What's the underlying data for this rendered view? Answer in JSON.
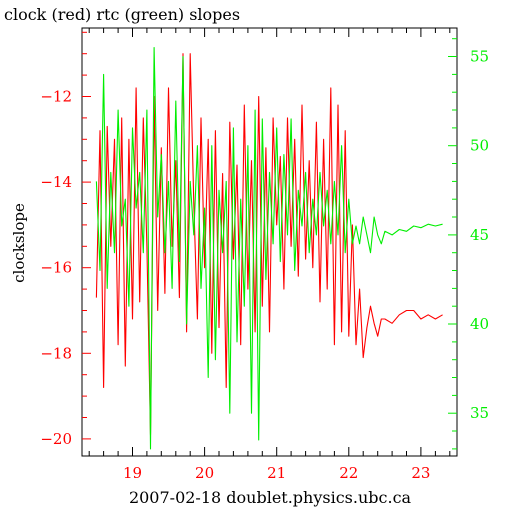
{
  "chart_data": {
    "type": "line",
    "title": "clock (red) rtc (green) slopes",
    "xlabel": "2007-02-18 doublet.physics.ubc.ca",
    "ylabel": "clockslope",
    "xlim": [
      18.3,
      23.5
    ],
    "ylim_left": [
      -20.4,
      -10.4
    ],
    "ylim_right": [
      32.6,
      56.6
    ],
    "x_ticks": [
      19,
      20,
      21,
      22,
      23
    ],
    "y_left_ticks": [
      -20,
      -18,
      -16,
      -14,
      -12
    ],
    "y_right_ticks": [
      35,
      40,
      45,
      50,
      55
    ],
    "grid": false,
    "colors": {
      "clock": "#ff0000",
      "rtc": "#00ee00",
      "axes": "#000000"
    },
    "series": [
      {
        "label": "clock (red)",
        "axis": "left",
        "color": "#ff0000",
        "x": [
          18.5,
          18.55,
          18.6,
          18.65,
          18.7,
          18.75,
          18.8,
          18.85,
          18.9,
          18.95,
          19.0,
          19.05,
          19.1,
          19.15,
          19.2,
          19.25,
          19.3,
          19.35,
          19.4,
          19.45,
          19.5,
          19.55,
          19.6,
          19.65,
          19.7,
          19.75,
          19.8,
          19.85,
          19.9,
          19.95,
          20.0,
          20.05,
          20.1,
          20.15,
          20.2,
          20.25,
          20.3,
          20.35,
          20.4,
          20.45,
          20.5,
          20.55,
          20.6,
          20.65,
          20.7,
          20.75,
          20.8,
          20.85,
          20.9,
          20.95,
          21.0,
          21.05,
          21.1,
          21.15,
          21.2,
          21.25,
          21.3,
          21.35,
          21.4,
          21.45,
          21.5,
          21.55,
          21.6,
          21.65,
          21.7,
          21.75,
          21.8,
          21.85,
          21.9,
          21.95,
          22.0,
          22.05,
          22.1,
          22.15,
          22.2,
          22.25,
          22.3,
          22.35,
          22.4,
          22.45,
          22.5,
          22.6,
          22.7,
          22.8,
          22.9,
          23.0,
          23.1,
          23.2,
          23.3
        ],
        "y": [
          -16.7,
          -12.8,
          -18.8,
          -12.7,
          -15.5,
          -13.0,
          -17.8,
          -12.5,
          -18.3,
          -13.0,
          -17.2,
          -11.8,
          -16.8,
          -12.5,
          -15.5,
          -19.9,
          -12.0,
          -17.0,
          -13.2,
          -16.6,
          -11.8,
          -15.5,
          -13.5,
          -16.7,
          -11.0,
          -17.5,
          -11.0,
          -14.5,
          -17.2,
          -12.5,
          -16.0,
          -13.0,
          -18.0,
          -12.8,
          -17.4,
          -13.8,
          -18.8,
          -12.6,
          -15.8,
          -13.6,
          -17.8,
          -12.2,
          -16.5,
          -13.5,
          -17.5,
          -12.0,
          -16.9,
          -13.2,
          -17.5,
          -12.5,
          -15.0,
          -13.4,
          -16.5,
          -12.5,
          -15.5,
          -13.0,
          -16.2,
          -12.2,
          -15.8,
          -13.5,
          -16.0,
          -12.6,
          -16.8,
          -13.0,
          -16.5,
          -11.8,
          -17.8,
          -12.2,
          -17.5,
          -12.8,
          -17.6,
          -15.0,
          -17.8,
          -16.5,
          -18.1,
          -17.4,
          -16.9,
          -17.3,
          -17.6,
          -17.2,
          -17.2,
          -17.3,
          -17.1,
          -17.0,
          -17.0,
          -17.2,
          -17.1,
          -17.2,
          -17.1
        ]
      },
      {
        "label": "rtc (green)",
        "axis": "right",
        "color": "#00ee00",
        "x": [
          18.5,
          18.55,
          18.6,
          18.65,
          18.7,
          18.75,
          18.8,
          18.85,
          18.9,
          18.95,
          19.0,
          19.05,
          19.1,
          19.15,
          19.2,
          19.25,
          19.3,
          19.35,
          19.4,
          19.45,
          19.5,
          19.55,
          19.6,
          19.65,
          19.7,
          19.75,
          19.8,
          19.85,
          19.9,
          19.95,
          20.0,
          20.05,
          20.1,
          20.15,
          20.2,
          20.25,
          20.3,
          20.35,
          20.4,
          20.45,
          20.5,
          20.55,
          20.6,
          20.65,
          20.7,
          20.75,
          20.8,
          20.85,
          20.9,
          20.95,
          21.0,
          21.05,
          21.1,
          21.15,
          21.2,
          21.25,
          21.3,
          21.35,
          21.4,
          21.45,
          21.5,
          21.55,
          21.6,
          21.65,
          21.7,
          21.75,
          21.8,
          21.85,
          21.9,
          21.95,
          22.0,
          22.05,
          22.1,
          22.15,
          22.2,
          22.25,
          22.3,
          22.35,
          22.4,
          22.45,
          22.5,
          22.6,
          22.7,
          22.8,
          22.9,
          23.0,
          23.1,
          23.2,
          23.3
        ],
        "y": [
          48.0,
          43.0,
          54.0,
          42.0,
          48.5,
          44.0,
          52.0,
          45.5,
          47.0,
          41.0,
          51.0,
          46.5,
          48.5,
          44.0,
          52.0,
          33.0,
          55.5,
          46.0,
          49.5,
          44.0,
          48.0,
          42.0,
          52.5,
          43.5,
          55.0,
          40.0,
          48.0,
          45.0,
          50.0,
          42.0,
          46.5,
          37.0,
          50.0,
          38.0,
          47.5,
          44.0,
          48.0,
          35.0,
          51.0,
          39.0,
          47.0,
          41.0,
          50.0,
          35.0,
          52.0,
          33.5,
          51.5,
          42.5,
          48.5,
          44.5,
          51.0,
          43.5,
          49.5,
          45.0,
          51.5,
          43.0,
          47.5,
          45.5,
          48.5,
          44.0,
          47.0,
          45.0,
          48.5,
          45.5,
          47.5,
          44.5,
          48.0,
          45.0,
          50.0,
          44.0,
          47.0,
          44.5,
          45.5,
          44.5,
          46.0,
          45.0,
          44.0,
          46.0,
          45.0,
          44.5,
          45.2,
          45.0,
          45.3,
          45.2,
          45.5,
          45.4,
          45.6,
          45.5,
          45.6
        ]
      }
    ]
  }
}
